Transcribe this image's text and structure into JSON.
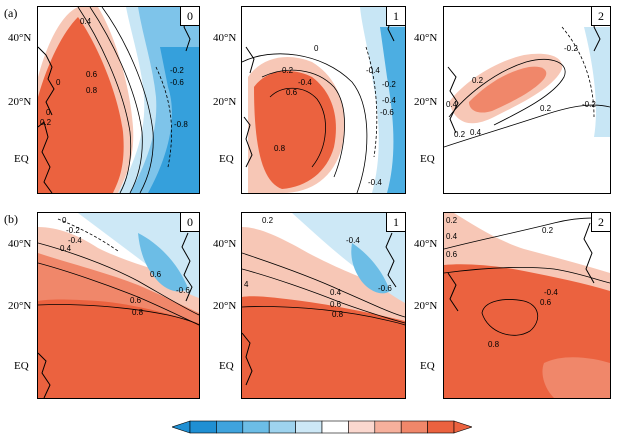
{
  "rows": [
    {
      "label": "(a)",
      "panels": [
        {
          "lag": "0",
          "contour_labels": [
            "0.4",
            "0",
            "0.6",
            "0.8",
            "0",
            "0.2",
            "-0.2",
            "-0.6",
            "-0.8"
          ]
        },
        {
          "lag": "1",
          "contour_labels": [
            "0",
            "0.2",
            "-0.4",
            "0.6",
            "0.8",
            "-0.4",
            "-0.2",
            "-0.4",
            "-0.6",
            "-0.4"
          ]
        },
        {
          "lag": "2",
          "contour_labels": [
            "-0.2",
            "0.2",
            "0.2",
            "0.4",
            "0.2",
            "0.4",
            "-0.2"
          ]
        }
      ]
    },
    {
      "label": "(b)",
      "panels": [
        {
          "lag": "0",
          "contour_labels": [
            "0",
            "-0.2",
            "-0.4",
            "0.4",
            "0.6",
            "-0.6",
            "0.6",
            "0.8"
          ]
        },
        {
          "lag": "1",
          "contour_labels": [
            "0.2",
            "-0.4",
            "4",
            "0.4",
            "0.6",
            "-0.6",
            "0.8"
          ]
        },
        {
          "lag": "2",
          "contour_labels": [
            "0.2",
            "0.4",
            "0.2",
            "0.6",
            "-0.4",
            "0.6",
            "0.8"
          ]
        }
      ]
    }
  ],
  "lat_labels": [
    "40°N",
    "20°N",
    "EQ"
  ],
  "colorbar": {
    "colors": [
      "#1f8fd3",
      "#3fa3dd",
      "#6cbde6",
      "#9ed3ee",
      "#cde8f6",
      "#ffffff",
      "#fbd8cf",
      "#f6b09c",
      "#f0876a",
      "#eb623f"
    ]
  }
}
